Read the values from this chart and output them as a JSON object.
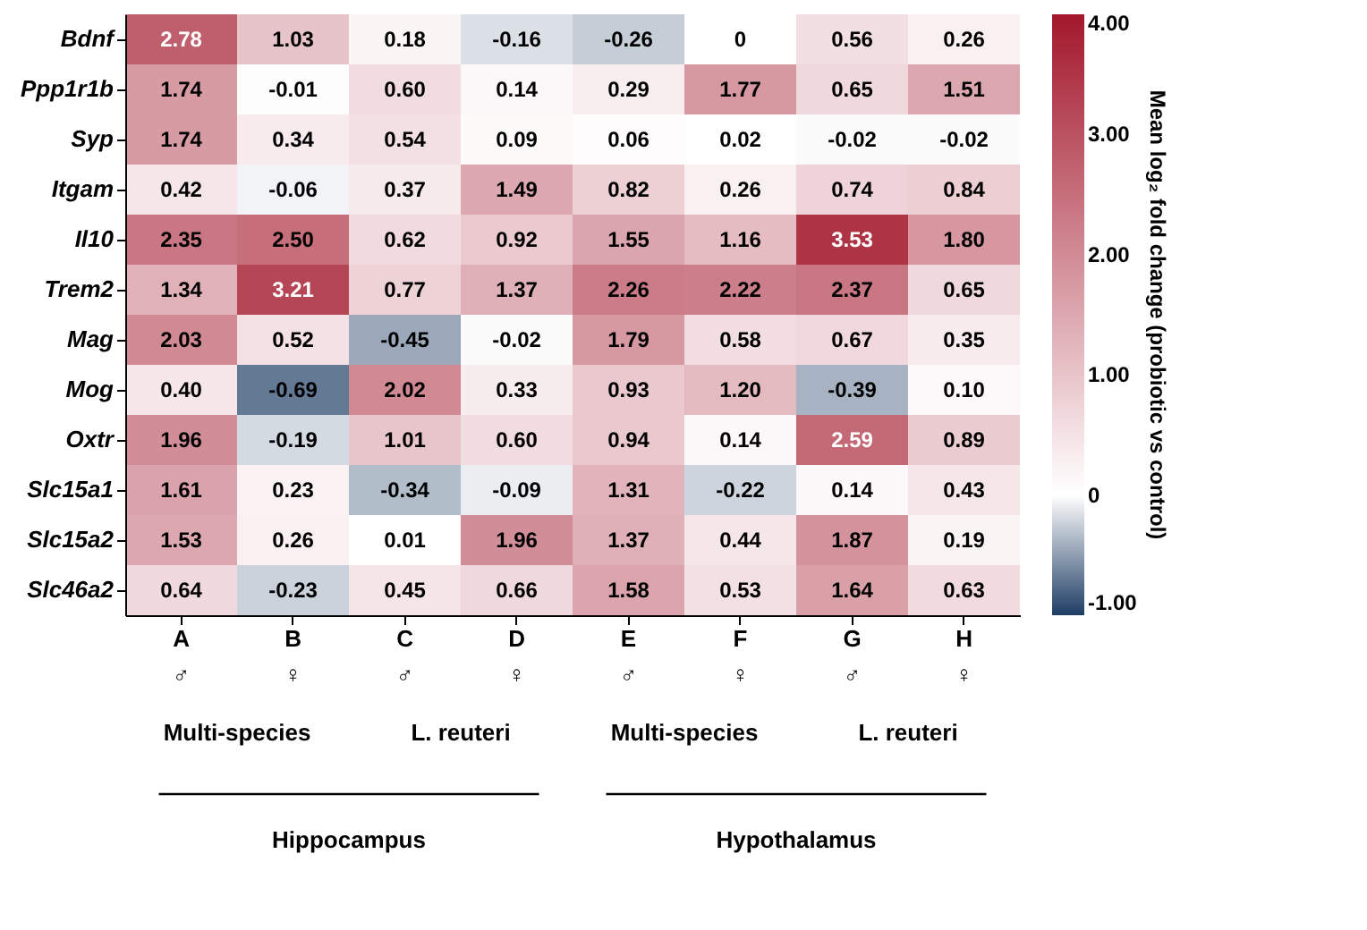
{
  "chart_data": {
    "type": "heatmap",
    "categories": [
      "A\n♂",
      "B\n♀",
      "C\n♂",
      "D\n♀",
      "E\n♂",
      "F\n♀",
      "G\n♂",
      "H\n♀"
    ],
    "y_categories": [
      "Bdnf",
      "Ppp1r1b",
      "Syp",
      "Itgam",
      "Il10",
      "Trem2",
      "Mag",
      "Mog",
      "Oxtr",
      "Slc15a1",
      "Slc15a2",
      "Slc46a2"
    ],
    "cells": [
      [
        2.78,
        1.03,
        0.18,
        -0.16,
        -0.26,
        0,
        0.56,
        0.26
      ],
      [
        1.74,
        -0.01,
        0.6,
        0.14,
        0.29,
        1.77,
        0.65,
        1.51
      ],
      [
        1.74,
        0.34,
        0.54,
        0.09,
        0.06,
        0.02,
        -0.02,
        -0.02
      ],
      [
        0.42,
        -0.06,
        0.37,
        1.49,
        0.82,
        0.26,
        0.74,
        0.84
      ],
      [
        2.35,
        2.5,
        0.62,
        0.92,
        1.55,
        1.16,
        3.53,
        1.8
      ],
      [
        1.34,
        3.21,
        0.77,
        1.37,
        2.26,
        2.22,
        2.37,
        0.65
      ],
      [
        2.03,
        0.52,
        -0.45,
        -0.02,
        1.79,
        0.58,
        0.67,
        0.35
      ],
      [
        0.4,
        -0.69,
        2.02,
        0.33,
        0.93,
        1.2,
        -0.39,
        0.1
      ],
      [
        1.96,
        -0.19,
        1.01,
        0.6,
        0.94,
        0.14,
        2.59,
        0.89
      ],
      [
        1.61,
        0.23,
        -0.34,
        -0.09,
        1.31,
        -0.22,
        0.14,
        0.43
      ],
      [
        1.53,
        0.26,
        0.01,
        1.96,
        1.37,
        0.44,
        1.87,
        0.19
      ],
      [
        0.64,
        -0.23,
        0.45,
        0.66,
        1.58,
        0.53,
        1.64,
        0.63
      ]
    ],
    "cell_labels": [
      [
        "2.78",
        "1.03",
        "0.18",
        "-0.16",
        "-0.26",
        "0",
        "0.56",
        "0.26"
      ],
      [
        "1.74",
        "-0.01",
        "0.60",
        "0.14",
        "0.29",
        "1.77",
        "0.65",
        "1.51"
      ],
      [
        "1.74",
        "0.34",
        "0.54",
        "0.09",
        "0.06",
        "0.02",
        "-0.02",
        "-0.02"
      ],
      [
        "0.42",
        "-0.06",
        "0.37",
        "1.49",
        "0.82",
        "0.26",
        "0.74",
        "0.84"
      ],
      [
        "2.35",
        "2.50",
        "0.62",
        "0.92",
        "1.55",
        "1.16",
        "3.53",
        "1.80"
      ],
      [
        "1.34",
        "3.21",
        "0.77",
        "1.37",
        "2.26",
        "2.22",
        "2.37",
        "0.65"
      ],
      [
        "2.03",
        "0.52",
        "-0.45",
        "-0.02",
        "1.79",
        "0.58",
        "0.67",
        "0.35"
      ],
      [
        "0.40",
        "-0.69",
        "2.02",
        "0.33",
        "0.93",
        "1.20",
        "-0.39",
        "0.10"
      ],
      [
        "1.96",
        "-0.19",
        "1.01",
        "0.60",
        "0.94",
        "0.14",
        "2.59",
        "0.89"
      ],
      [
        "1.61",
        "0.23",
        "-0.34",
        "-0.09",
        "1.31",
        "-0.22",
        "0.14",
        "0.43"
      ],
      [
        "1.53",
        "0.26",
        "0.01",
        "1.96",
        "1.37",
        "0.44",
        "1.87",
        "0.19"
      ],
      [
        "0.64",
        "-0.23",
        "0.45",
        "0.66",
        "1.58",
        "0.53",
        "1.64",
        "0.63"
      ]
    ],
    "clabel": "Mean log₂ fold change (probiotic vs control)",
    "clim": [
      -1,
      4
    ],
    "cticks": [
      {
        "value": -1,
        "label": "-1.00"
      },
      {
        "value": 0,
        "label": "0"
      },
      {
        "value": 1,
        "label": "1.00"
      },
      {
        "value": 2,
        "label": "2.00"
      },
      {
        "value": 3,
        "label": "3.00"
      },
      {
        "value": 4,
        "label": "4.00"
      }
    ],
    "annotations": [
      "Multi-species",
      "L. reuteri",
      "Multi-species",
      "L. reuteri",
      "Hippocampus",
      "Hypothalamus"
    ]
  }
}
